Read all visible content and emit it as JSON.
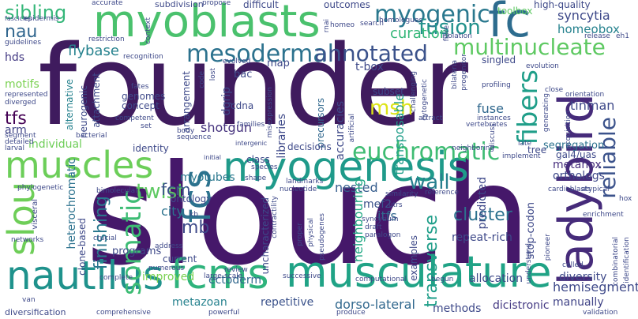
{
  "words": [
    {
      "text": "founder",
      "color": "#3f1b5e"
    },
    {
      "text": "slouch",
      "color": "#45186a"
    },
    {
      "text": "myoblasts",
      "color": "#4ac16d"
    },
    {
      "text": "fc",
      "color": "#2d6c8e"
    },
    {
      "text": "ladybird",
      "color": "#462b7a"
    },
    {
      "text": "myogenesis",
      "color": "#1f9a8a"
    },
    {
      "text": "muscles",
      "color": "#6cce59"
    },
    {
      "text": "nautilus",
      "color": "#1f928c"
    },
    {
      "text": "fcms",
      "color": "#2eb37c"
    },
    {
      "text": "musculature",
      "color": "#20a386"
    },
    {
      "text": "fcs",
      "color": "#2c728e"
    },
    {
      "text": "slou",
      "color": "#6ece58"
    },
    {
      "text": "mesodermal",
      "color": "#2c728e"
    },
    {
      "text": "annotated",
      "color": "#3b528b"
    },
    {
      "text": "myogenic",
      "color": "#2a788e"
    },
    {
      "text": "multinucleate",
      "color": "#5ec962"
    },
    {
      "text": "fusion",
      "color": "#21918c"
    },
    {
      "text": "euchromatic",
      "color": "#3fbc73"
    },
    {
      "text": "somatic",
      "color": "#3dbc74"
    },
    {
      "text": "fibers",
      "color": "#1f9e89"
    },
    {
      "text": "reliable",
      "color": "#3b528b"
    },
    {
      "text": "msh",
      "color": "#dde318"
    },
    {
      "text": "sibling",
      "color": "#35b779"
    },
    {
      "text": "nau",
      "color": "#31668e"
    },
    {
      "text": "syncytia",
      "color": "#3e4989"
    },
    {
      "text": "homeobox",
      "color": "#26828e"
    },
    {
      "text": "curation",
      "color": "#35b779"
    },
    {
      "text": "flybase",
      "color": "#26828e"
    },
    {
      "text": "twist",
      "color": "#5ec962"
    },
    {
      "text": "fcm",
      "color": "#3b528b"
    },
    {
      "text": "mb",
      "color": "#3e4989"
    },
    {
      "text": "wall",
      "color": "#277f8e"
    },
    {
      "text": "finishing",
      "color": "#2a788e"
    },
    {
      "text": "transverse",
      "color": "#1f9e89"
    },
    {
      "text": "cluster",
      "color": "#2c728e"
    },
    {
      "text": "tfs",
      "color": "#440154"
    },
    {
      "text": "arm",
      "color": "#414487"
    },
    {
      "text": "tinman",
      "color": "#3e4989"
    },
    {
      "text": "metahox",
      "color": "#472f7d"
    },
    {
      "text": "hds",
      "color": "#443a83"
    },
    {
      "text": "motifs",
      "color": "#7ad151"
    },
    {
      "text": "heterochromatic",
      "color": "#2c728e"
    },
    {
      "text": "shotgun",
      "color": "#46337e"
    },
    {
      "text": "individual",
      "color": "#6ece58"
    },
    {
      "text": "myotubes",
      "color": "#2a788e"
    },
    {
      "text": "fuse",
      "color": "#31688e"
    },
    {
      "text": "nested",
      "color": "#365d8d"
    },
    {
      "text": "transposable",
      "color": "#1f9e89"
    },
    {
      "text": "predicted",
      "color": "#3e4989"
    },
    {
      "text": "neighbouring",
      "color": "#22a884"
    },
    {
      "text": "itfs",
      "color": "#31688e"
    },
    {
      "text": "mef2",
      "color": "#3b528b"
    },
    {
      "text": "city",
      "color": "#2c728e"
    },
    {
      "text": "ontology",
      "color": "#3e4989"
    },
    {
      "text": "improved",
      "color": "#7ad151"
    },
    {
      "text": "ectoderm",
      "color": "#31688e"
    },
    {
      "text": "allocation",
      "color": "#3e4989"
    },
    {
      "text": "diversity",
      "color": "#3e4989"
    },
    {
      "text": "hemisegment",
      "color": "#3e4989"
    },
    {
      "text": "manually",
      "color": "#414487"
    },
    {
      "text": "dicistronic",
      "color": "#443983"
    },
    {
      "text": "methods",
      "color": "#3e4989"
    },
    {
      "text": "metazoan",
      "color": "#26828e"
    },
    {
      "text": "repetitive",
      "color": "#3b528b"
    },
    {
      "text": "dorso-lateral",
      "color": "#31688e"
    },
    {
      "text": "segregation",
      "color": "#2c728e"
    },
    {
      "text": "gal4/uas",
      "color": "#3e4989"
    },
    {
      "text": "orthologs",
      "color": "#3e4989"
    },
    {
      "text": "libraries",
      "color": "#3e4989"
    },
    {
      "text": "accuracies",
      "color": "#3e4989"
    },
    {
      "text": "precursors",
      "color": "#31688e"
    },
    {
      "text": "attachment",
      "color": "#3e4989"
    },
    {
      "text": "neurogenic",
      "color": "#3e4989"
    },
    {
      "text": "alternative",
      "color": "#26828e"
    },
    {
      "text": "clone-based",
      "color": "#3e4989"
    },
    {
      "text": "uncharacterized",
      "color": "#3e4989"
    },
    {
      "text": "repeat-rich",
      "color": "#3e4989"
    },
    {
      "text": "stop-codon",
      "color": "#3e4989"
    },
    {
      "text": "examples",
      "color": "#3e4989"
    },
    {
      "text": "programs",
      "color": "#3e4989"
    },
    {
      "text": "current",
      "color": "#3e4989"
    },
    {
      "text": "concept",
      "color": "#3e4989"
    },
    {
      "text": "genomes",
      "color": "#3e4989"
    },
    {
      "text": "arrangement",
      "color": "#3e4989"
    },
    {
      "text": "dgrip",
      "color": "#3e4989"
    },
    {
      "text": "cdna",
      "color": "#3e4989"
    },
    {
      "text": "bac",
      "color": "#3e4989"
    },
    {
      "text": "map",
      "color": "#3e4989"
    },
    {
      "text": "t-box",
      "color": "#3e4989"
    },
    {
      "text": "subset",
      "color": "#3e4989"
    },
    {
      "text": "singled",
      "color": "#3e4989"
    },
    {
      "text": "high-quality",
      "color": "#3e4989"
    },
    {
      "text": "toolbox",
      "color": "#5ec962"
    },
    {
      "text": "identity",
      "color": "#3e4989"
    },
    {
      "text": "decisions",
      "color": "#3e4989"
    },
    {
      "text": "class",
      "color": "#3e4989"
    },
    {
      "text": "tree",
      "color": "#3e4989"
    },
    {
      "text": "subdivision",
      "color": "#3e4989"
    },
    {
      "text": "difficult",
      "color": "#3e4989"
    },
    {
      "text": "outcomes",
      "color": "#3e4989"
    },
    {
      "text": "accurate",
      "color": "#3e4989"
    },
    {
      "text": "propose",
      "color": "#3e4989"
    },
    {
      "text": "fibre",
      "color": "#3e4989"
    },
    {
      "text": "epidermis",
      "color": "#3e4989"
    },
    {
      "text": "fascicles",
      "color": "#3e4989"
    },
    {
      "text": "guidelines",
      "color": "#3e4989"
    },
    {
      "text": "restriction",
      "color": "#3e4989"
    },
    {
      "text": "recognition",
      "color": "#3e4989"
    },
    {
      "text": "evolved",
      "color": "#3e4989"
    },
    {
      "text": "homeo",
      "color": "#3e4989"
    },
    {
      "text": "search",
      "color": "#3e4989"
    },
    {
      "text": "homologues",
      "color": "#3e4989"
    },
    {
      "text": "isolation",
      "color": "#3e4989"
    },
    {
      "text": "release",
      "color": "#3e4989"
    },
    {
      "text": "eh1",
      "color": "#3e4989"
    },
    {
      "text": "evolution",
      "color": "#3e4989"
    },
    {
      "text": "profiling",
      "color": "#3e4989"
    },
    {
      "text": "orientation",
      "color": "#3e4989"
    },
    {
      "text": "close",
      "color": "#3e4989"
    },
    {
      "text": "instances",
      "color": "#3e4989"
    },
    {
      "text": "vertebrates",
      "color": "#3e4989"
    },
    {
      "text": "attract",
      "color": "#3e4989"
    },
    {
      "text": "represented",
      "color": "#3e4989"
    },
    {
      "text": "diverged",
      "color": "#3e4989"
    },
    {
      "text": "segment",
      "color": "#3e4989"
    },
    {
      "text": "detailed",
      "color": "#3e4989"
    },
    {
      "text": "larval",
      "color": "#3e4989"
    },
    {
      "text": "fates",
      "color": "#3e4989"
    },
    {
      "text": "competent",
      "color": "#3e4989"
    },
    {
      "text": "set",
      "color": "#3e4989"
    },
    {
      "text": "bacterial",
      "color": "#3e4989"
    },
    {
      "text": "body",
      "color": "#3e4989"
    },
    {
      "text": "sequence",
      "color": "#3e4989"
    },
    {
      "text": "families",
      "color": "#3e4989"
    },
    {
      "text": "intergenic",
      "color": "#3e4989"
    },
    {
      "text": "initial",
      "color": "#3e4989"
    },
    {
      "text": "species",
      "color": "#3e4989"
    },
    {
      "text": "shape",
      "color": "#3e4989"
    },
    {
      "text": "landmarks",
      "color": "#3e4989"
    },
    {
      "text": "nucleotide",
      "color": "#3e4989"
    },
    {
      "text": "similarity",
      "color": "#3e4989"
    },
    {
      "text": "reference",
      "color": "#3e4989"
    },
    {
      "text": "utrs",
      "color": "#3e4989"
    },
    {
      "text": "syncytium",
      "color": "#3e4989"
    },
    {
      "text": "draft",
      "color": "#3e4989"
    },
    {
      "text": "paralogon",
      "color": "#3e4989"
    },
    {
      "text": "phylogenetic",
      "color": "#3e4989"
    },
    {
      "text": "bimolecular",
      "color": "#3e4989"
    },
    {
      "text": "visceral",
      "color": "#3e4989"
    },
    {
      "text": "kb",
      "color": "#3e4989"
    },
    {
      "text": "networks",
      "color": "#3e4989"
    },
    {
      "text": "crucial",
      "color": "#3e4989"
    },
    {
      "text": "address",
      "color": "#3e4989"
    },
    {
      "text": "numerous",
      "color": "#3e4989"
    },
    {
      "text": "complete",
      "color": "#3e4989"
    },
    {
      "text": "large-scale",
      "color": "#3e4989"
    },
    {
      "text": "review",
      "color": "#3e4989"
    },
    {
      "text": "successive",
      "color": "#3e4989"
    },
    {
      "text": "computational",
      "color": "#3e4989"
    },
    {
      "text": "begun",
      "color": "#3e4989"
    },
    {
      "text": "van",
      "color": "#3e4989"
    },
    {
      "text": "diversification",
      "color": "#3e4989"
    },
    {
      "text": "comprehensive",
      "color": "#3e4989"
    },
    {
      "text": "powerful",
      "color": "#3e4989"
    },
    {
      "text": "produce",
      "color": "#3e4989"
    },
    {
      "text": "validation",
      "color": "#3e4989"
    },
    {
      "text": "called",
      "color": "#3e4989"
    },
    {
      "text": "hox",
      "color": "#3e4989"
    },
    {
      "text": "enrichment",
      "color": "#3e4989"
    },
    {
      "text": "cardioblasts",
      "color": "#3e4989"
    },
    {
      "text": "atypical",
      "color": "#3e4989"
    },
    {
      "text": "implement",
      "color": "#3e4989"
    },
    {
      "text": "discuss",
      "color": "#3e4989"
    },
    {
      "text": "late",
      "color": "#3e4989"
    },
    {
      "text": "neighboring",
      "color": "#3e4989"
    },
    {
      "text": "understand",
      "color": "#3e4989"
    },
    {
      "text": "pioneer",
      "color": "#3e4989"
    },
    {
      "text": "proper",
      "color": "#3e4989"
    },
    {
      "text": "physical",
      "color": "#3e4989"
    },
    {
      "text": "pseudogenes",
      "color": "#3e4989"
    },
    {
      "text": "contractility",
      "color": "#3e4989"
    },
    {
      "text": "artificial",
      "color": "#3e4989"
    },
    {
      "text": "challenging",
      "color": "#3e4989"
    },
    {
      "text": "cytogenetic",
      "color": "#3e4989"
    },
    {
      "text": "bilateria",
      "color": "#3e4989"
    },
    {
      "text": "progenitor",
      "color": "#3e4989"
    },
    {
      "text": "acquisition",
      "color": "#3e4989"
    },
    {
      "text": "generating",
      "color": "#3e4989"
    },
    {
      "text": "misexpression",
      "color": "#3e4989"
    },
    {
      "text": "lost",
      "color": "#3e4989"
    },
    {
      "text": "code",
      "color": "#3e4989"
    },
    {
      "text": "context",
      "color": "#3e4989"
    },
    {
      "text": "rnai",
      "color": "#3e4989"
    },
    {
      "text": "identification",
      "color": "#3e4989"
    },
    {
      "text": "combinatorial",
      "color": "#3e4989"
    }
  ]
}
